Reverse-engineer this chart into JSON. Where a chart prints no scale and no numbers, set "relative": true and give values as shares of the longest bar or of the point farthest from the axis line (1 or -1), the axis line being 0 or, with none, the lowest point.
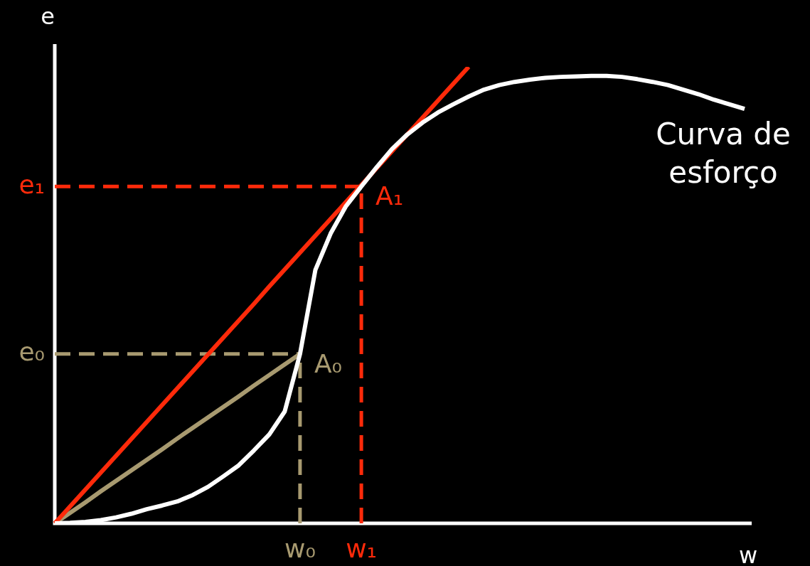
{
  "chart_data": {
    "type": "line",
    "relative": true,
    "xlabel": "w",
    "ylabel": "e",
    "tick_labels": "x",
    "legend": false,
    "marker": "none",
    "categories": [
      null,
      null,
      null,
      null,
      null,
      null,
      null,
      null,
      null,
      null,
      null,
      null,
      null,
      null,
      null,
      null,
      "w₀",
      null,
      null,
      null,
      "w₁",
      null,
      null,
      null,
      null,
      null,
      null,
      null,
      null,
      null,
      null,
      null,
      null,
      null,
      null,
      null,
      null,
      null,
      null,
      null,
      null,
      null,
      null,
      null,
      null,
      null
    ],
    "series": [
      {
        "name": "Curva de esforço",
        "color": "#ffffff",
        "values": [
          0,
          0.001,
          0.003,
          0.007,
          0.013,
          0.021,
          0.031,
          0.039,
          0.048,
          0.062,
          0.08,
          0.103,
          0.127,
          0.16,
          0.195,
          0.245,
          0.371,
          0.555,
          0.635,
          0.695,
          0.738,
          0.78,
          0.82,
          0.852,
          0.878,
          0.9,
          0.918,
          0.935,
          0.95,
          0.96,
          0.967,
          0.972,
          0.976,
          0.978,
          0.979,
          0.98,
          0.98,
          0.978,
          0.973,
          0.967,
          0.96,
          0.95,
          0.94,
          0.928,
          0.918,
          0.908
        ]
      },
      {
        "color": "#ff2a0a",
        "values": [
          0,
          0.037,
          0.074,
          0.111,
          0.148,
          0.185,
          0.222,
          0.259,
          0.296,
          0.333,
          0.37,
          0.407,
          0.444,
          0.481,
          0.519,
          0.556,
          0.593,
          0.63,
          0.667,
          0.704,
          0.741,
          0.778,
          0.815,
          0.852,
          0.889,
          0.926,
          0.963,
          1,
          null,
          null,
          null,
          null,
          null,
          null,
          null,
          null,
          null,
          null,
          null,
          null,
          null,
          null,
          null,
          null,
          null,
          null
        ]
      },
      {
        "color": "#a89a70",
        "values": [
          0,
          0.023,
          0.046,
          0.07,
          0.093,
          0.116,
          0.139,
          0.162,
          0.186,
          0.209,
          0.232,
          0.255,
          0.278,
          0.302,
          0.325,
          0.348,
          0.371,
          null,
          null,
          null,
          null,
          null,
          null,
          null,
          null,
          null,
          null,
          null,
          null,
          null,
          null,
          null,
          null,
          null,
          null,
          null,
          null,
          null,
          null,
          null,
          null,
          null,
          null,
          null,
          null,
          null
        ]
      }
    ],
    "ref_lines": [
      {
        "axis": "y",
        "value": 0.371,
        "label": "e₀",
        "color": "#a89a70",
        "line_style": "dashed"
      },
      {
        "axis": "y",
        "value": 0.738,
        "label": "e₁",
        "color": "#ff2a0a",
        "line_style": "dashed"
      },
      {
        "axis": "x",
        "value": "w₀",
        "color": "#a89a70",
        "line_style": "dashed"
      },
      {
        "axis": "x",
        "value": "w₁",
        "color": "#ff2a0a",
        "line_style": "dashed"
      }
    ],
    "annotations": [
      {
        "text": "A₀",
        "x": "w₀",
        "y": 0.371
      },
      {
        "text": "A₁",
        "x": "w₁",
        "y": 0.738
      }
    ]
  }
}
